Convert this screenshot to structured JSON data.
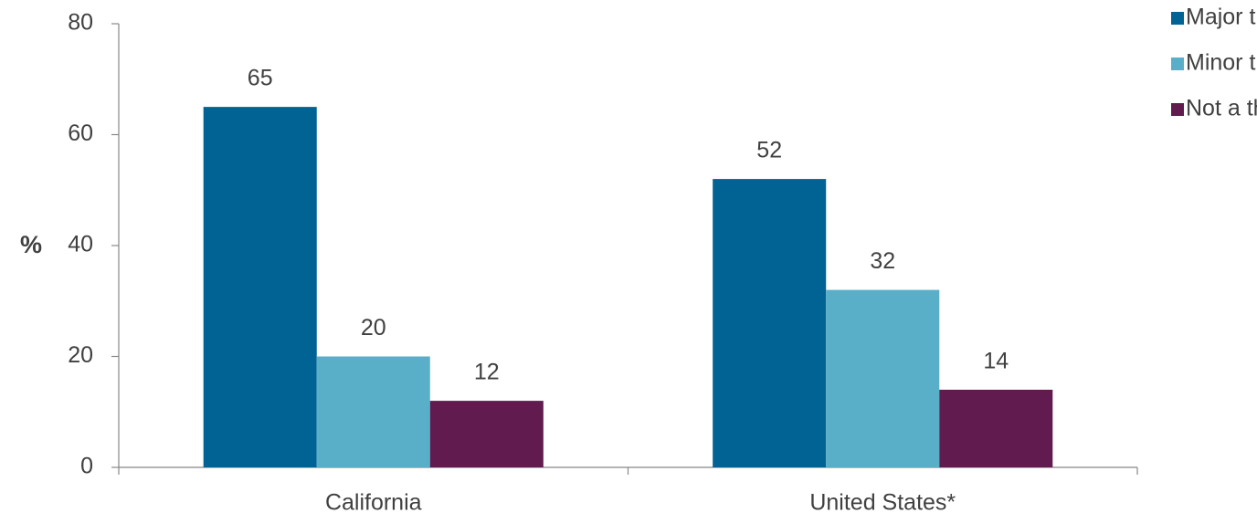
{
  "chart_data": {
    "type": "bar",
    "y_label": "%",
    "categories": [
      "California",
      "United States*"
    ],
    "series": [
      {
        "name": "Major threat",
        "color": "#006394",
        "values": [
          65,
          52
        ]
      },
      {
        "name": "Minor threat",
        "color": "#5aafc8",
        "values": [
          20,
          32
        ]
      },
      {
        "name": "Not a threat",
        "color": "#621b4f",
        "values": [
          12,
          14
        ]
      }
    ],
    "ylim": [
      0,
      80
    ],
    "yticks": [
      0,
      20,
      40,
      60,
      80
    ],
    "grid": false,
    "legend": "top-right"
  }
}
